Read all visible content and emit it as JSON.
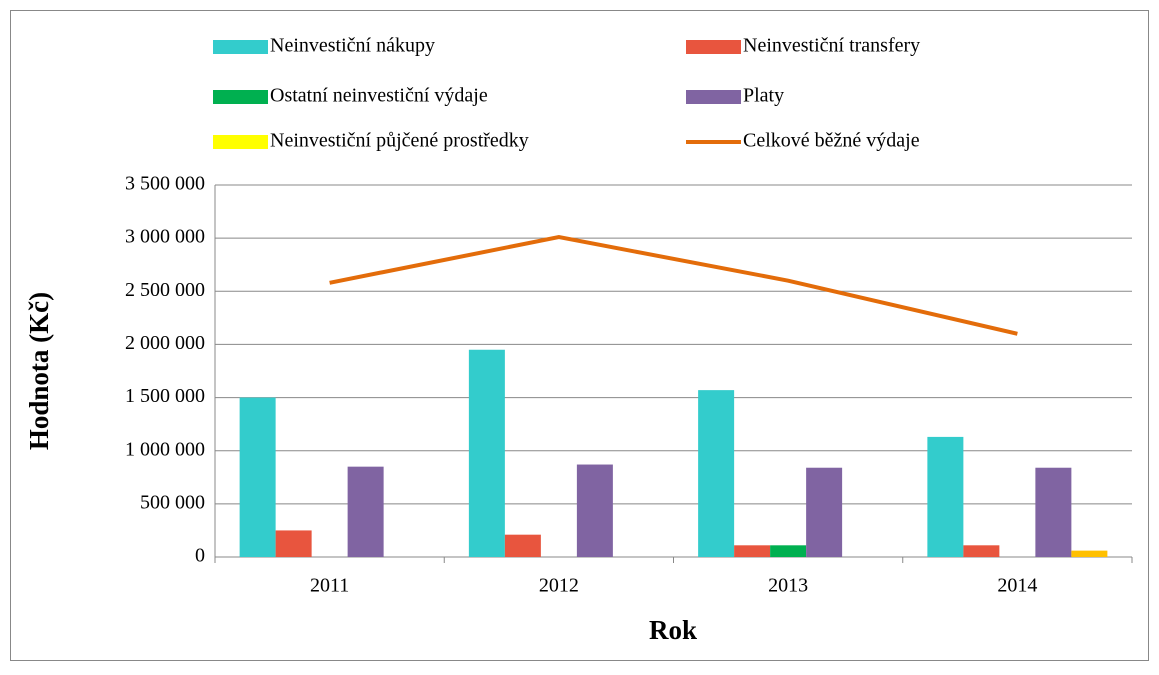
{
  "chart_data": {
    "type": "bar",
    "x_label": "Rok",
    "y_label": "Hodnota (Kč)",
    "categories": [
      "2011",
      "2012",
      "2013",
      "2014"
    ],
    "series": [
      {
        "name": "Neinvestiční nákupy",
        "color": "#33CCCC",
        "values": [
          1500000,
          1950000,
          1570000,
          1130000
        ]
      },
      {
        "name": "Neinvestiční transfery",
        "color": "#E8553E",
        "values": [
          250000,
          210000,
          110000,
          110000
        ]
      },
      {
        "name": "Ostatní neinvestiční výdaje",
        "color": "#00B050",
        "values": [
          0,
          0,
          110000,
          0
        ]
      },
      {
        "name": "Platy",
        "color": "#8064A2",
        "values": [
          850000,
          870000,
          840000,
          840000
        ]
      },
      {
        "name": "Neinvestiční půjčené prostředky",
        "color": "#FFC000",
        "values": [
          0,
          0,
          0,
          60000
        ]
      },
      {
        "name": "Celkové běžné výdaje",
        "color": "#E36C0A",
        "type": "line",
        "values": [
          2580000,
          3010000,
          2600000,
          2100000
        ]
      }
    ],
    "ylim": [
      0,
      3500000
    ],
    "yticks": [
      0,
      {
        "value": 500000,
        "label": "500 000"
      },
      {
        "value": 1000000,
        "label": "1 000 000"
      },
      {
        "value": 1500000,
        "label": "1 500 000"
      },
      {
        "value": 2000000,
        "label": "2 000 000"
      },
      {
        "value": 2500000,
        "label": "2 500 000"
      },
      {
        "value": 3000000,
        "label": "3 000 000"
      },
      {
        "value": 3500000,
        "label": "3 500 000"
      }
    ],
    "grid": true
  }
}
